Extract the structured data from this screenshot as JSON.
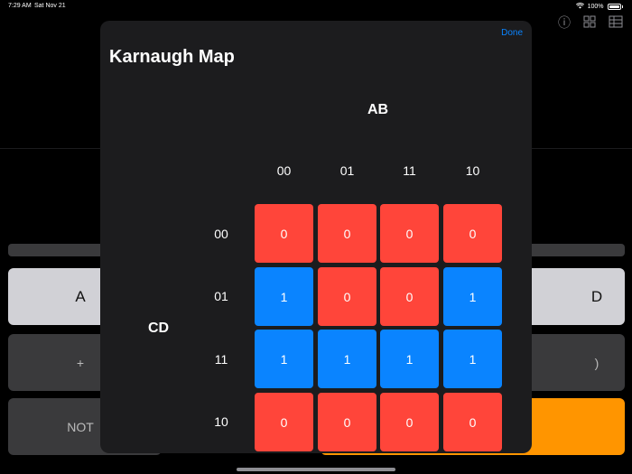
{
  "status_bar": {
    "time": "7:29 AM",
    "date": "Sat Nov 21",
    "battery": "100%"
  },
  "background": {
    "icons": [
      "info-icon",
      "grid-icon",
      "table-icon"
    ],
    "keys": [
      {
        "label": "A"
      },
      {
        "label": "D"
      },
      {
        "label": "+"
      },
      {
        "label": ")"
      },
      {
        "label": "NOT"
      }
    ]
  },
  "modal": {
    "done_label": "Done",
    "title": "Karnaugh Map",
    "col_var": "AB",
    "row_var": "CD",
    "col_headers": [
      "00",
      "01",
      "11",
      "10"
    ],
    "row_headers": [
      "00",
      "01",
      "11",
      "10"
    ],
    "cells": [
      [
        "0",
        "0",
        "0",
        "0"
      ],
      [
        "1",
        "0",
        "0",
        "1"
      ],
      [
        "1",
        "1",
        "1",
        "1"
      ],
      [
        "0",
        "0",
        "0",
        "0"
      ]
    ]
  },
  "colors": {
    "zero": "#ff453a",
    "one": "#0a84ff",
    "accent": "#0a84ff"
  }
}
